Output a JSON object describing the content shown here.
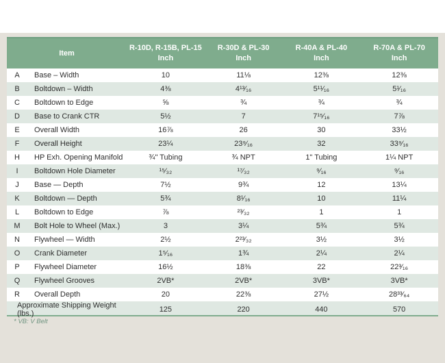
{
  "colors": {
    "header_green": "#7fac8d",
    "header_border_green": "#6f9e80",
    "alt_row_green": "#dfe8e2",
    "panel_beige": "#e4e1da",
    "footnote_green": "#6f9480",
    "text": "#2e2e2e"
  },
  "table": {
    "header": {
      "item_label": "Item",
      "columns": [
        {
          "line1": "R-10D, R-15B, PL-15",
          "line2": "Inch"
        },
        {
          "line1": "R-30D & PL-30",
          "line2": "Inch"
        },
        {
          "line1": "R-40A & PL-40",
          "line2": "Inch"
        },
        {
          "line1": "R-70A & PL-70",
          "line2": "Inch"
        }
      ]
    },
    "rows": [
      {
        "letter": "A",
        "item": "Base – Width",
        "values": [
          "10",
          "11⅛",
          "12⅜",
          "12⅜"
        ]
      },
      {
        "letter": "B",
        "item": "Boltdown – Width",
        "values": [
          "4⅜",
          "4¹³⁄₁₆",
          "5¹¹⁄₁₆",
          "5¹⁄₁₆"
        ]
      },
      {
        "letter": "C",
        "item": "Boltdown to Edge",
        "values": [
          "⅝",
          "¾",
          "¾",
          "¾"
        ]
      },
      {
        "letter": "D",
        "item": "Base to Crank CTR",
        "values": [
          "5½",
          "7",
          "7¹⁵⁄₁₆",
          "7⅞"
        ]
      },
      {
        "letter": "E",
        "item": "Overall Width",
        "values": [
          "16⅞",
          "26",
          "30",
          "33½"
        ]
      },
      {
        "letter": "F",
        "item": "Overall Height",
        "values": [
          "23¼",
          "23⁹⁄₁₆",
          "32",
          "33⁹⁄₁₆"
        ]
      },
      {
        "letter": "H",
        "item": "HP Exh. Opening Manifold",
        "values": [
          "¾\" Tubing",
          "¾ NPT",
          "1\" Tubing",
          "1¼ NPT"
        ]
      },
      {
        "letter": "I",
        "item": "Boltdown Hole Diameter",
        "values": [
          "¹⁵⁄₃₂",
          "¹⁷⁄₃₂",
          "⁹⁄₁₆",
          "⁹⁄₁₆"
        ]
      },
      {
        "letter": "J",
        "item": "Base — Depth",
        "values": [
          "7½",
          "9¾",
          "12",
          "13¼"
        ]
      },
      {
        "letter": "K",
        "item": "Boltdown — Depth",
        "values": [
          "5¾",
          "8¹⁄₁₆",
          "10",
          "11¼"
        ]
      },
      {
        "letter": "L",
        "item": "Boltdown to Edge",
        "values": [
          "⅞",
          "²³⁄₃₂",
          "1",
          "1"
        ]
      },
      {
        "letter": "M",
        "item": "Bolt Hole to Wheel (Max.)",
        "values": [
          "3",
          "3¼",
          "5¾",
          "5¾"
        ]
      },
      {
        "letter": "N",
        "item": "Flywheel — Width",
        "values": [
          "2½",
          "2²³⁄₃₂",
          "3½",
          "3½"
        ]
      },
      {
        "letter": "O",
        "item": "Crank Diameter",
        "values": [
          "1⁵⁄₁₆",
          "1¾",
          "2¼",
          "2¼"
        ]
      },
      {
        "letter": "P",
        "item": "Flywheel Diameter",
        "values": [
          "16½",
          "18⅜",
          "22",
          "22³⁄₁₆"
        ]
      },
      {
        "letter": "Q",
        "item": "Flywheel Grooves",
        "values": [
          "2VB*",
          "2VB*",
          "3VB*",
          "3VB*"
        ]
      },
      {
        "letter": "R",
        "item": "Overall Depth",
        "values": [
          "20",
          "22⅜",
          "27½",
          "28³³⁄₆₄"
        ]
      }
    ],
    "footer_row": {
      "label": "Approximate Shipping Weight (lbs.)",
      "values": [
        "125",
        "220",
        "440",
        "570"
      ]
    },
    "footnote": "* VB: V Belt"
  }
}
